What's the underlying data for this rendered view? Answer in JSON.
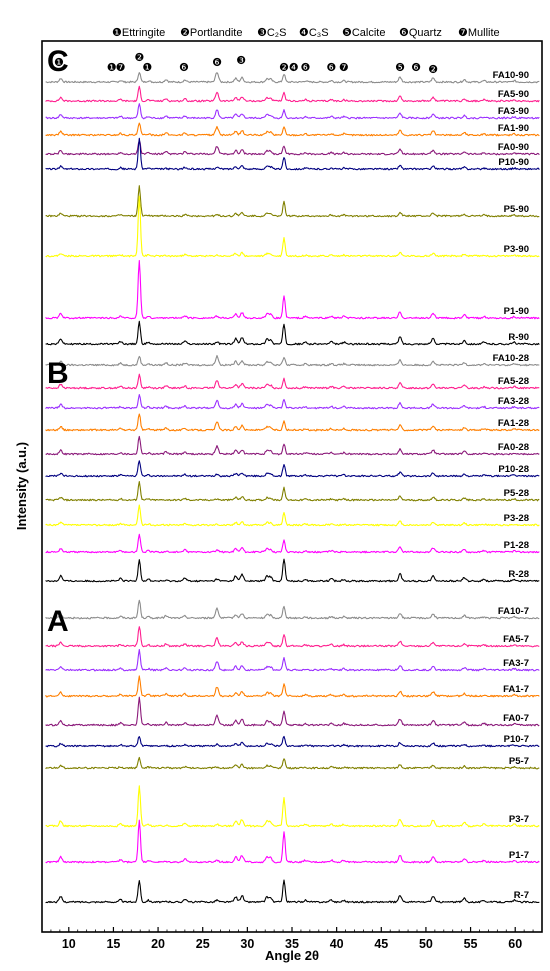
{
  "chart_data": {
    "type": "line",
    "xlabel": "Angle 2θ",
    "ylabel": "Intensity (a.u.)",
    "xlim": [
      7,
      63
    ],
    "x_ticks": [
      "10",
      "15",
      "20",
      "25",
      "30",
      "35",
      "40",
      "45",
      "50",
      "55",
      "60"
    ],
    "legend": {
      "items": [
        {
          "marker": "❶",
          "label": "Ettringite"
        },
        {
          "marker": "❷",
          "label": "Portlandite"
        },
        {
          "marker": "❸",
          "label": "C₂S"
        },
        {
          "marker": "❹",
          "label": "C₃S"
        },
        {
          "marker": "❺",
          "label": "Calcite"
        },
        {
          "marker": "❻",
          "label": "Quartz"
        },
        {
          "marker": "❼",
          "label": "Mullite"
        }
      ]
    },
    "peak_markers": [
      {
        "x": 8.9,
        "marker": "❶"
      },
      {
        "x": 14.8,
        "marker": "❶"
      },
      {
        "x": 15.8,
        "marker": "❼"
      },
      {
        "x": 17.9,
        "marker": "❷"
      },
      {
        "x": 18.8,
        "marker": "❶"
      },
      {
        "x": 22.9,
        "marker": "❻"
      },
      {
        "x": 26.6,
        "marker": "❻"
      },
      {
        "x": 29.3,
        "marker": "❸"
      },
      {
        "x": 34.1,
        "marker": "❷"
      },
      {
        "x": 35.2,
        "marker": "❹"
      },
      {
        "x": 36.5,
        "marker": "❻"
      },
      {
        "x": 39.4,
        "marker": "❻"
      },
      {
        "x": 40.8,
        "marker": "❼"
      },
      {
        "x": 47.1,
        "marker": "❺"
      },
      {
        "x": 48.9,
        "marker": "❻"
      },
      {
        "x": 50.8,
        "marker": "❷"
      }
    ],
    "panels": [
      {
        "letter": "C",
        "series": [
          {
            "name": "FA10-90",
            "color": "#8c8c8c",
            "h18": 10,
            "h34": 8,
            "q26": 10,
            "mis": 4
          },
          {
            "name": "FA5-90",
            "color": "#ff1f8f",
            "h18": 14,
            "h34": 8,
            "q26": 9,
            "mis": 4
          },
          {
            "name": "FA3-90",
            "color": "#9b30ff",
            "h18": 14,
            "h34": 8,
            "q26": 8,
            "mis": 4
          },
          {
            "name": "FA1-90",
            "color": "#ff7f00",
            "h18": 12,
            "h34": 8,
            "q26": 8,
            "mis": 4
          },
          {
            "name": "FA0-90",
            "color": "#8b1a7a",
            "h18": 14,
            "h34": 8,
            "q26": 8,
            "mis": 4
          },
          {
            "name": "P10-90",
            "color": "#000080",
            "h18": 30,
            "h34": 12,
            "q26": 2,
            "mis": 3
          },
          {
            "name": "P5-90",
            "color": "#808000",
            "h18": 30,
            "h34": 14,
            "q26": 1,
            "mis": 3
          },
          {
            "name": "P3-90",
            "color": "#ffff00",
            "h18": 60,
            "h34": 18,
            "q26": 1,
            "mis": 3
          },
          {
            "name": "P1-90",
            "color": "#ff00ff",
            "h18": 58,
            "h34": 22,
            "q26": 2,
            "mis": 5
          },
          {
            "name": "R-90",
            "color": "#000000",
            "h18": 22,
            "h34": 20,
            "q26": 2,
            "mis": 6
          }
        ]
      },
      {
        "letter": "B",
        "series": [
          {
            "name": "FA10-28",
            "color": "#8c8c8c",
            "h18": 9,
            "h34": 8,
            "q26": 9,
            "mis": 4
          },
          {
            "name": "FA5-28",
            "color": "#ff1f8f",
            "h18": 13,
            "h34": 9,
            "q26": 8,
            "mis": 4
          },
          {
            "name": "FA3-28",
            "color": "#9b30ff",
            "h18": 13,
            "h34": 8,
            "q26": 8,
            "mis": 4
          },
          {
            "name": "FA1-28",
            "color": "#ff7f00",
            "h18": 16,
            "h34": 9,
            "q26": 8,
            "mis": 4
          },
          {
            "name": "FA0-28",
            "color": "#8b1a7a",
            "h18": 18,
            "h34": 10,
            "q26": 8,
            "mis": 4
          },
          {
            "name": "P10-28",
            "color": "#000080",
            "h18": 16,
            "h34": 12,
            "q26": 2,
            "mis": 3
          },
          {
            "name": "P5-28",
            "color": "#808000",
            "h18": 18,
            "h34": 12,
            "q26": 1,
            "mis": 3
          },
          {
            "name": "P3-28",
            "color": "#ffff00",
            "h18": 20,
            "h34": 12,
            "q26": 1,
            "mis": 3
          },
          {
            "name": "P1-28",
            "color": "#ff00ff",
            "h18": 18,
            "h34": 12,
            "q26": 2,
            "mis": 4
          },
          {
            "name": "R-28",
            "color": "#000000",
            "h18": 22,
            "h34": 22,
            "q26": 2,
            "mis": 6
          }
        ]
      },
      {
        "letter": "A",
        "series": [
          {
            "name": "FA10-7",
            "color": "#8c8c8c",
            "h18": 18,
            "h34": 12,
            "q26": 10,
            "mis": 4
          },
          {
            "name": "FA5-7",
            "color": "#ff1f8f",
            "h18": 20,
            "h34": 12,
            "q26": 8,
            "mis": 4
          },
          {
            "name": "FA3-7",
            "color": "#9b30ff",
            "h18": 20,
            "h34": 12,
            "q26": 9,
            "mis": 4
          },
          {
            "name": "FA1-7",
            "color": "#ff7f00",
            "h18": 20,
            "h34": 12,
            "q26": 9,
            "mis": 4
          },
          {
            "name": "FA0-7",
            "color": "#8b1a7a",
            "h18": 28,
            "h34": 14,
            "q26": 10,
            "mis": 5
          },
          {
            "name": "P10-7",
            "color": "#000080",
            "h18": 10,
            "h34": 10,
            "q26": 2,
            "mis": 3
          },
          {
            "name": "P5-7",
            "color": "#808000",
            "h18": 10,
            "h34": 10,
            "q26": 1,
            "mis": 3
          },
          {
            "name": "P3-7",
            "color": "#ffff00",
            "h18": 40,
            "h34": 28,
            "q26": 2,
            "mis": 6
          },
          {
            "name": "P1-7",
            "color": "#ff00ff",
            "h18": 42,
            "h34": 30,
            "q26": 2,
            "mis": 6
          },
          {
            "name": "R-7",
            "color": "#000000",
            "h18": 22,
            "h34": 22,
            "q26": 2,
            "mis": 6
          }
        ]
      }
    ]
  }
}
